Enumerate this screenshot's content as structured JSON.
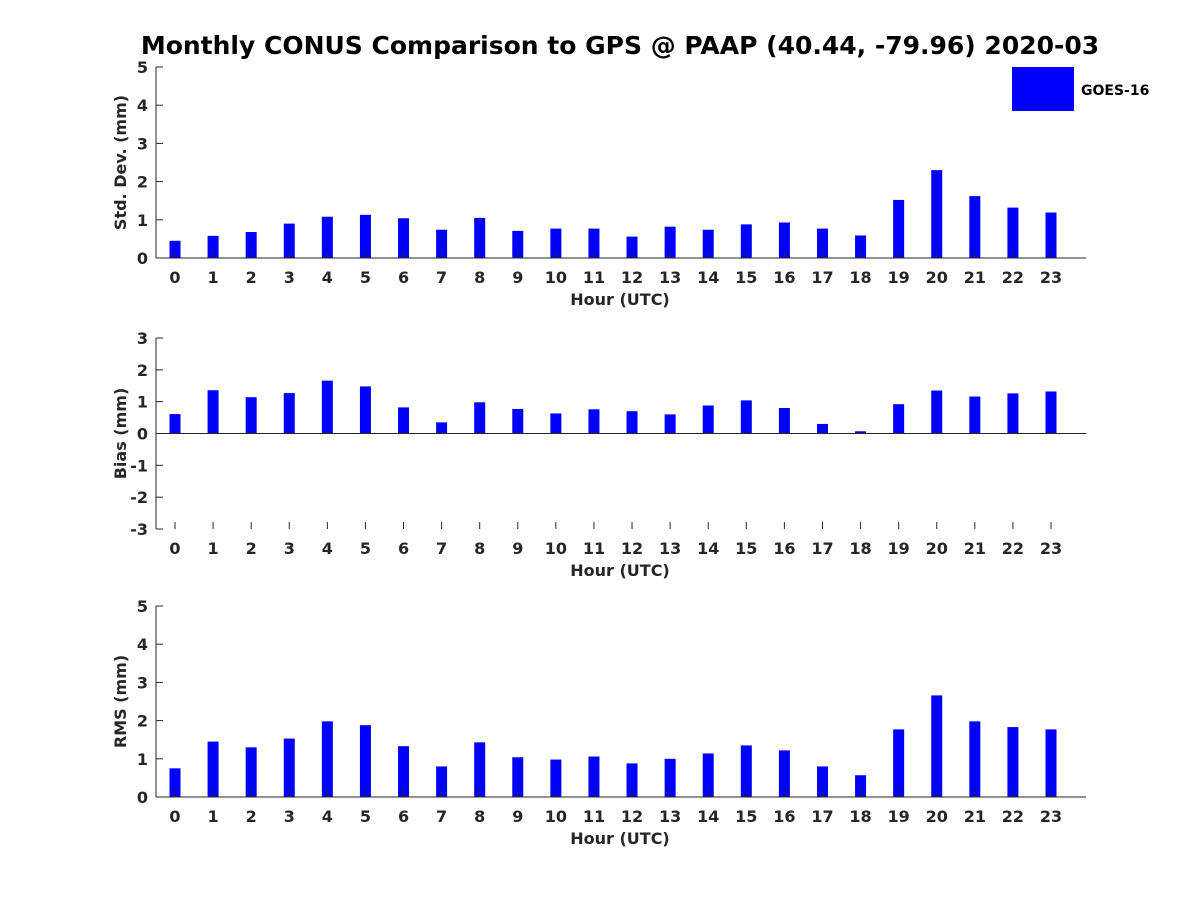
{
  "chart_data": {
    "title": "Monthly CONUS Comparison to GPS @ PAAP (40.44, -79.96) 2020-03",
    "legend": {
      "label": "GOES-16",
      "color": "#0000ff",
      "placement": "top-right"
    },
    "subplots": [
      {
        "type": "bar",
        "name": "std-dev",
        "categories": [
          "0",
          "1",
          "2",
          "3",
          "4",
          "5",
          "6",
          "7",
          "8",
          "9",
          "10",
          "11",
          "12",
          "13",
          "14",
          "15",
          "16",
          "17",
          "18",
          "19",
          "20",
          "21",
          "22",
          "23"
        ],
        "series": [
          {
            "name": "GOES-16",
            "values": [
              0.45,
              0.58,
              0.68,
              0.9,
              1.08,
              1.13,
              1.04,
              0.74,
              1.05,
              0.71,
              0.77,
              0.77,
              0.56,
              0.82,
              0.74,
              0.88,
              0.93,
              0.77,
              0.59,
              1.52,
              2.3,
              1.62,
              1.32,
              1.19
            ]
          }
        ],
        "xlabel": "Hour (UTC)",
        "ylabel": "Std. Dev. (mm)",
        "ylim": [
          0,
          5
        ],
        "yticks": [
          "0",
          "1",
          "2",
          "3",
          "4",
          "5"
        ],
        "grid": false
      },
      {
        "type": "bar",
        "name": "bias",
        "categories": [
          "0",
          "1",
          "2",
          "3",
          "4",
          "5",
          "6",
          "7",
          "8",
          "9",
          "10",
          "11",
          "12",
          "13",
          "14",
          "15",
          "16",
          "17",
          "18",
          "19",
          "20",
          "21",
          "22",
          "23"
        ],
        "series": [
          {
            "name": "GOES-16",
            "values": [
              0.61,
              1.36,
              1.14,
              1.27,
              1.66,
              1.48,
              0.82,
              0.35,
              0.98,
              0.77,
              0.63,
              0.76,
              0.7,
              0.6,
              0.88,
              1.04,
              0.8,
              0.3,
              0.07,
              0.92,
              1.35,
              1.16,
              1.26,
              1.32
            ]
          }
        ],
        "xlabel": "Hour (UTC)",
        "ylabel": "Bias (mm)",
        "ylim": [
          -3,
          3
        ],
        "yticks": [
          "-3",
          "-2",
          "-1",
          "0",
          "1",
          "2",
          "3"
        ],
        "grid": false
      },
      {
        "type": "bar",
        "name": "rms",
        "categories": [
          "0",
          "1",
          "2",
          "3",
          "4",
          "5",
          "6",
          "7",
          "8",
          "9",
          "10",
          "11",
          "12",
          "13",
          "14",
          "15",
          "16",
          "17",
          "18",
          "19",
          "20",
          "21",
          "22",
          "23"
        ],
        "series": [
          {
            "name": "GOES-16",
            "values": [
              0.75,
              1.45,
              1.3,
              1.53,
              1.98,
              1.88,
              1.33,
              0.8,
              1.43,
              1.04,
              0.98,
              1.06,
              0.88,
              1.0,
              1.14,
              1.35,
              1.22,
              0.8,
              0.57,
              1.77,
              2.66,
              1.98,
              1.83,
              1.77
            ]
          }
        ],
        "xlabel": "Hour (UTC)",
        "ylabel": "RMS (mm)",
        "ylim": [
          0,
          5
        ],
        "yticks": [
          "0",
          "1",
          "2",
          "3",
          "4",
          "5"
        ],
        "grid": false
      }
    ]
  }
}
